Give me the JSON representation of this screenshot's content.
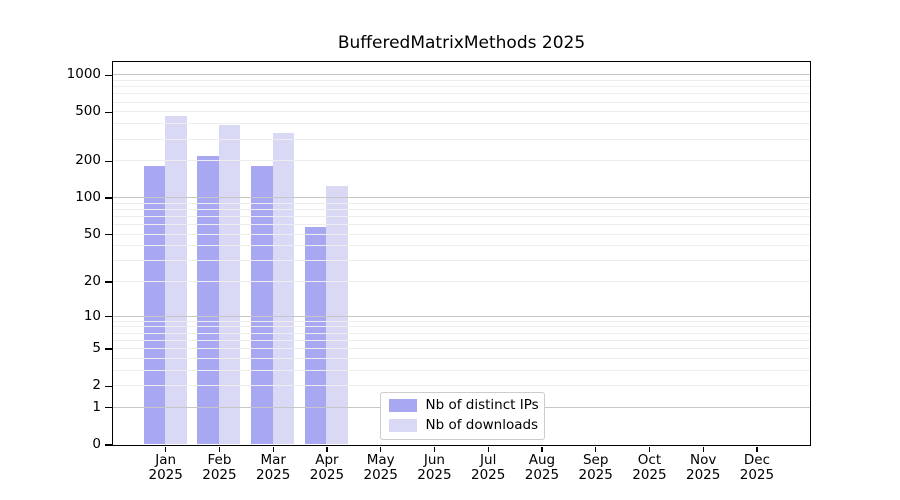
{
  "chart_data": {
    "type": "bar",
    "title": "BufferedMatrixMethods 2025",
    "categories": [
      "Jan",
      "Feb",
      "Mar",
      "Apr",
      "May",
      "Jun",
      "Jul",
      "Aug",
      "Sep",
      "Oct",
      "Nov",
      "Dec"
    ],
    "category_year": "2025",
    "series": [
      {
        "name": "Nb of distinct IPs",
        "color": "#a7a7f2",
        "values": [
          180,
          220,
          180,
          57,
          0,
          0,
          0,
          0,
          0,
          0,
          0,
          0
        ]
      },
      {
        "name": "Nb of downloads",
        "color": "#d9d9f6",
        "values": [
          460,
          390,
          335,
          123,
          0,
          0,
          0,
          0,
          0,
          0,
          0,
          0
        ]
      }
    ],
    "yscale": "log1p",
    "y_ticks": [
      0,
      1,
      2,
      5,
      10,
      20,
      50,
      100,
      200,
      500,
      1000
    ],
    "ylim": [
      0,
      1280
    ],
    "grid": "horizontal",
    "grid_on_top_of_bars": true,
    "legend_position": "lower center inside",
    "xlabel": "",
    "ylabel": ""
  },
  "style": {
    "background": "#ffffff",
    "axis_color": "#000000",
    "major_grid_color": "#c6c6c6",
    "minor_grid_color": "#ededed",
    "legend_border_color": "#cccccc",
    "text_color": "#000000"
  }
}
